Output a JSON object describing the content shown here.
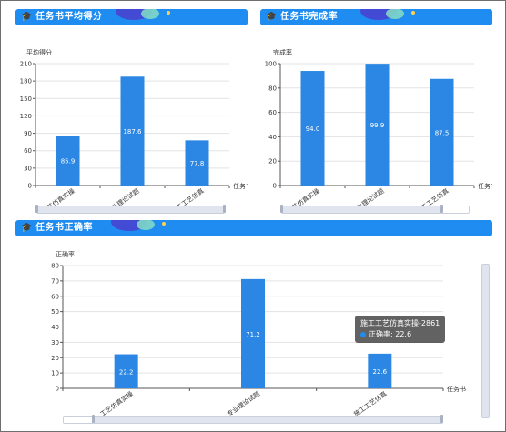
{
  "panels": [
    {
      "title": "任务书平均得分",
      "icon": "graduation-cap-icon",
      "chart_data": {
        "type": "bar",
        "ylabel": "平均得分",
        "xlabel": "任务书",
        "ylim": [
          0,
          210
        ],
        "ytick_step": 30,
        "categories": [
          "工艺仿真实操",
          "专业理论试题",
          "施工工艺仿真"
        ],
        "values": [
          85.9,
          187.6,
          77.8
        ],
        "data_labels": [
          "85.9",
          "187.6",
          "77.8"
        ],
        "bar_color": "#2b87e3",
        "grid": true
      }
    },
    {
      "title": "任务书完成率",
      "icon": "graduation-cap-icon",
      "chart_data": {
        "type": "bar",
        "ylabel": "完成率",
        "xlabel": "任务书",
        "ylim": [
          0,
          100
        ],
        "ytick_step": 20,
        "categories": [
          "工艺仿真实操",
          "专业理论试题",
          "施工工艺仿真"
        ],
        "values": [
          94.0,
          99.9,
          87.5
        ],
        "data_labels": [
          "94.0",
          "99.9",
          "87.5"
        ],
        "bar_color": "#2b87e3",
        "grid": true
      }
    },
    {
      "title": "任务书正确率",
      "icon": "graduation-cap-icon",
      "chart_data": {
        "type": "bar",
        "ylabel": "正确率",
        "xlabel": "任务书",
        "ylim": [
          0,
          80
        ],
        "ytick_step": 10,
        "categories": [
          "工艺仿真实操",
          "专业理论试题",
          "施工工艺仿真"
        ],
        "values": [
          22.2,
          71.2,
          22.6
        ],
        "data_labels": [
          "22.2",
          "71.2",
          "22.6"
        ],
        "bar_color": "#2b87e3",
        "grid": true
      }
    }
  ],
  "tooltip": {
    "title": "施工工艺仿真实操-2861",
    "label": "正确率: 22.6"
  }
}
